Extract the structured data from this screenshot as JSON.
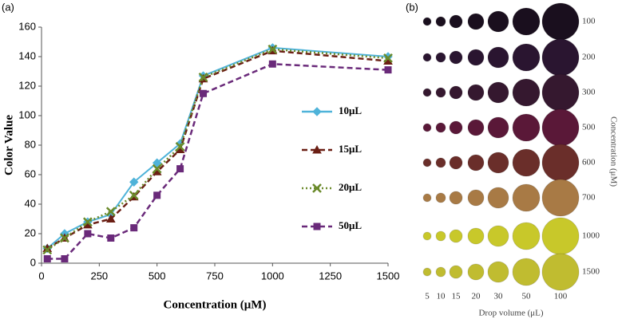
{
  "chart_data": [
    {
      "type": "line",
      "panel_label": "(a)",
      "xlabel": "Concentration (μM)",
      "ylabel": "Color Value",
      "x": [
        25,
        100,
        200,
        300,
        400,
        500,
        600,
        700,
        1000,
        1500
      ],
      "series": [
        {
          "name": "10μL",
          "color": "#4fb3d9",
          "marker": "diamond",
          "dash": "solid",
          "values": [
            10,
            20,
            28,
            33,
            55,
            68,
            81,
            127,
            146,
            140
          ]
        },
        {
          "name": "15μL",
          "color": "#6b1f14",
          "marker": "triangle",
          "dash": "dashed",
          "values": [
            10,
            17,
            26,
            30,
            45,
            62,
            77,
            125,
            144,
            137
          ]
        },
        {
          "name": "20μL",
          "color": "#6a8a2a",
          "marker": "cross",
          "dash": "dotted",
          "values": [
            9,
            17,
            28,
            35,
            46,
            64,
            79,
            126,
            145,
            139
          ]
        },
        {
          "name": "50μL",
          "color": "#6a2a7a",
          "marker": "square",
          "dash": "dashed",
          "values": [
            3,
            3,
            20,
            17,
            24,
            46,
            64,
            115,
            135,
            131
          ]
        }
      ],
      "xlim": [
        0,
        1500
      ],
      "xticks": [
        0,
        250,
        500,
        750,
        1000,
        1250,
        1500
      ],
      "ylim": [
        0,
        160
      ],
      "yticks": [
        0,
        20,
        40,
        60,
        80,
        100,
        120,
        140,
        160
      ],
      "legend": "right"
    },
    {
      "type": "drop-grid",
      "panel_label": "(b)",
      "xlabel": "Drop volume (μL)",
      "ylabel": "Concentration (μM)",
      "rows": [
        "100",
        "200",
        "300",
        "500",
        "600",
        "700",
        "1000",
        "1500"
      ],
      "row_colors": [
        "#1a0f1e",
        "#2a1530",
        "#35182f",
        "#5a1838",
        "#6a2e2a",
        "#a87a45",
        "#c8c82a",
        "#c0bc30"
      ],
      "columns": [
        "5",
        "10",
        "15",
        "20",
        "30",
        "50",
        "100"
      ]
    }
  ]
}
